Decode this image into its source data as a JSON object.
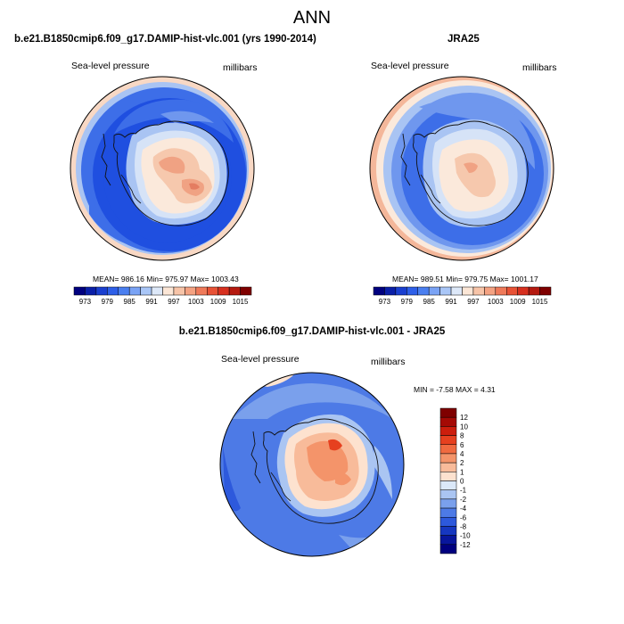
{
  "page_title": "ANN",
  "panels": [
    {
      "title": "b.e21.B1850cmip6.f09_g17.DAMIP-hist-vlc.001 (yrs 1990-2014)",
      "left_label": "Sea-level pressure",
      "right_label": "millibars",
      "stats": "MEAN= 986.16  Min= 975.97  Max= 1003.43"
    },
    {
      "title": "JRA25",
      "left_label": "Sea-level pressure",
      "right_label": "millibars",
      "stats": "MEAN= 989.51  Min= 979.75  Max= 1001.17"
    },
    {
      "title": "b.e21.B1850cmip6.f09_g17.DAMIP-hist-vlc.001 - JRA25",
      "left_label": "Sea-level pressure",
      "right_label": "millibars",
      "stats": "MIN =  -7.58 MAX =   4.31"
    }
  ],
  "abs_colorbar": {
    "labels": [
      "973",
      "979",
      "985",
      "991",
      "997",
      "1003",
      "1009",
      "1015"
    ],
    "colors": [
      "#00007f",
      "#0a1fa8",
      "#1a3fd0",
      "#2e5fe8",
      "#4a7ff0",
      "#7aa3f5",
      "#a9c6f7",
      "#dde8f8",
      "#fbe6d6",
      "#f7c4a8",
      "#f4a282",
      "#ef7a5a",
      "#e85236",
      "#d7301f",
      "#b51a10",
      "#7f0000"
    ]
  },
  "diff_colorbar": {
    "labels": [
      "12",
      "10",
      "8",
      "6",
      "4",
      "2",
      "1",
      "0",
      "-1",
      "-2",
      "-4",
      "-6",
      "-8",
      "-10",
      "-12"
    ],
    "colors": [
      "#7f0000",
      "#a50a05",
      "#cc1e0d",
      "#e6401f",
      "#f06a40",
      "#f4946a",
      "#f8bb9a",
      "#fde2cf",
      "#dbe8f8",
      "#aac5f2",
      "#7aa0ec",
      "#4d7ae6",
      "#2d59dc",
      "#1637c0",
      "#08169c",
      "#00007f"
    ]
  },
  "map_colors": {
    "deep_blue": "#1f4fe0",
    "mid_blue": "#3d6ee8",
    "light_blue": "#6f97ee",
    "pale_blue": "#a9c4f3",
    "very_pale_blue": "#d6e3f7",
    "cream": "#fbe9db",
    "peach": "#f6c8ad",
    "salmon": "#f0a283",
    "dark_salmon": "#e47d61",
    "red_brown": "#b8462f"
  }
}
